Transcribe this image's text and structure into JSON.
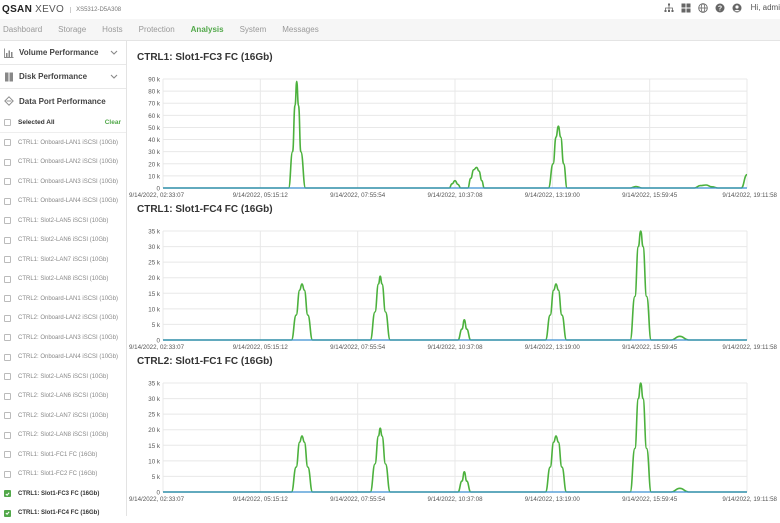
{
  "header": {
    "logo_main": "QSAN",
    "logo_sub": "XEVO",
    "model": "XS5312-D5A308",
    "user": "Hi, admi",
    "icons": [
      "network-icon",
      "grid-icon",
      "globe-icon",
      "help-icon",
      "user-icon"
    ]
  },
  "nav": {
    "tabs": [
      {
        "label": "Dashboard",
        "active": false
      },
      {
        "label": "Storage",
        "active": false
      },
      {
        "label": "Hosts",
        "active": false
      },
      {
        "label": "Protection",
        "active": false
      },
      {
        "label": "Analysis",
        "active": true
      },
      {
        "label": "System",
        "active": false
      },
      {
        "label": "Messages",
        "active": false
      }
    ]
  },
  "sidebar": {
    "sections": [
      {
        "label": "Volume Performance",
        "icon": "bar-chart-icon"
      },
      {
        "label": "Disk Performance",
        "icon": "disk-icon"
      },
      {
        "label": "Data Port Performance",
        "icon": "port-icon"
      }
    ],
    "selected_all": "Selected All",
    "clear": "Clear",
    "ports": [
      {
        "label": "CTRL1: Onboard-LAN1 iSCSI (10Gb)",
        "checked": false
      },
      {
        "label": "CTRL1: Onboard-LAN2 iSCSI (10Gb)",
        "checked": false
      },
      {
        "label": "CTRL1: Onboard-LAN3 iSCSI (10Gb)",
        "checked": false
      },
      {
        "label": "CTRL1: Onboard-LAN4 iSCSI (10Gb)",
        "checked": false
      },
      {
        "label": "CTRL1: Slot2-LAN5 iSCSI (10Gb)",
        "checked": false
      },
      {
        "label": "CTRL1: Slot2-LAN6 iSCSI (10Gb)",
        "checked": false
      },
      {
        "label": "CTRL1: Slot2-LAN7 iSCSI (10Gb)",
        "checked": false
      },
      {
        "label": "CTRL1: Slot2-LAN8 iSCSI (10Gb)",
        "checked": false
      },
      {
        "label": "CTRL2: Onboard-LAN1 iSCSI (10Gb)",
        "checked": false
      },
      {
        "label": "CTRL2: Onboard-LAN2 iSCSI (10Gb)",
        "checked": false
      },
      {
        "label": "CTRL2: Onboard-LAN3 iSCSI (10Gb)",
        "checked": false
      },
      {
        "label": "CTRL2: Onboard-LAN4 iSCSI (10Gb)",
        "checked": false
      },
      {
        "label": "CTRL2: Slot2-LAN5 iSCSI (10Gb)",
        "checked": false
      },
      {
        "label": "CTRL2: Slot2-LAN6 iSCSI (10Gb)",
        "checked": false
      },
      {
        "label": "CTRL2: Slot2-LAN7 iSCSI (10Gb)",
        "checked": false
      },
      {
        "label": "CTRL2: Slot2-LAN8 iSCSI (10Gb)",
        "checked": false
      },
      {
        "label": "CTRL1: Slot1-FC1 FC (16Gb)",
        "checked": false
      },
      {
        "label": "CTRL1: Slot1-FC2 FC (16Gb)",
        "checked": false
      },
      {
        "label": "CTRL1: Slot1-FC3 FC (16Gb)",
        "checked": true
      },
      {
        "label": "CTRL1: Slot1-FC4 FC (16Gb)",
        "checked": true
      }
    ]
  },
  "colors": {
    "accent": "#52a84a",
    "line_green": "#4cb13d",
    "line_blue": "#3a8fd1",
    "grid": "#e8e8e8"
  },
  "chart_data": [
    {
      "type": "line",
      "title": "CTRL1: Slot1-FC3 FC (16Gb)",
      "x_tick_labels": [
        "9/14/2022, 02:33:07",
        "9/14/2022, 05:15:12",
        "9/14/2022, 07:55:54",
        "9/14/2022, 10:37:08",
        "9/14/2022, 13:19:00",
        "9/14/2022, 15:59:45",
        "9/14/2022, 19:11:58"
      ],
      "y_ticks": [
        "0",
        "10 k",
        "20 k",
        "30 k",
        "40 k",
        "50 k",
        "60 k",
        "70 k",
        "80 k",
        "90 k"
      ],
      "ylim": [
        0,
        90000
      ],
      "xlim": [
        0,
        1
      ],
      "grid": true,
      "series": [
        {
          "color": "#4cb13d",
          "points": [
            [
              0,
              0
            ],
            [
              0.215,
              0
            ],
            [
              0.222,
              30000
            ],
            [
              0.226,
              68000
            ],
            [
              0.229,
              88000
            ],
            [
              0.232,
              68000
            ],
            [
              0.236,
              30000
            ],
            [
              0.244,
              0
            ],
            [
              0.49,
              0
            ],
            [
              0.495,
              3500
            ],
            [
              0.5,
              6000
            ],
            [
              0.505,
              3000
            ],
            [
              0.51,
              0
            ],
            [
              0.522,
              0
            ],
            [
              0.527,
              8000
            ],
            [
              0.532,
              15000
            ],
            [
              0.537,
              17000
            ],
            [
              0.541,
              14000
            ],
            [
              0.546,
              6000
            ],
            [
              0.55,
              0
            ],
            [
              0.66,
              0
            ],
            [
              0.668,
              20000
            ],
            [
              0.673,
              42000
            ],
            [
              0.677,
              51000
            ],
            [
              0.681,
              42000
            ],
            [
              0.686,
              20000
            ],
            [
              0.692,
              0
            ],
            [
              0.8,
              0
            ],
            [
              0.81,
              1200
            ],
            [
              0.82,
              0
            ],
            [
              0.91,
              0
            ],
            [
              0.92,
              2000
            ],
            [
              0.93,
              2500
            ],
            [
              0.94,
              1000
            ],
            [
              0.95,
              0
            ],
            [
              0.99,
              0
            ],
            [
              1,
              11000
            ]
          ]
        },
        {
          "color": "#3a8fd1",
          "points": [
            [
              0,
              0
            ],
            [
              1,
              0
            ]
          ]
        }
      ]
    },
    {
      "type": "line",
      "title": "CTRL1: Slot1-FC4 FC (16Gb)",
      "x_tick_labels": [
        "9/14/2022, 02:33:07",
        "9/14/2022, 05:15:12",
        "9/14/2022, 07:55:54",
        "9/14/2022, 10:37:08",
        "9/14/2022, 13:19:00",
        "9/14/2022, 15:59:45",
        "9/14/2022, 19:11:58"
      ],
      "y_ticks": [
        "0",
        "5 k",
        "10 k",
        "15 k",
        "20 k",
        "25 k",
        "30 k",
        "35 k"
      ],
      "ylim": [
        0,
        35000
      ],
      "xlim": [
        0,
        1
      ],
      "grid": true,
      "series": [
        {
          "color": "#4cb13d",
          "points": [
            [
              0,
              0
            ],
            [
              0.22,
              0
            ],
            [
              0.228,
              8000
            ],
            [
              0.234,
              16000
            ],
            [
              0.238,
              18000
            ],
            [
              0.242,
              16000
            ],
            [
              0.248,
              8000
            ],
            [
              0.256,
              0
            ],
            [
              0.355,
              0
            ],
            [
              0.363,
              9000
            ],
            [
              0.369,
              18000
            ],
            [
              0.372,
              20500
            ],
            [
              0.375,
              18000
            ],
            [
              0.381,
              9000
            ],
            [
              0.389,
              0
            ],
            [
              0.505,
              0
            ],
            [
              0.512,
              3500
            ],
            [
              0.516,
              6500
            ],
            [
              0.52,
              3500
            ],
            [
              0.527,
              0
            ],
            [
              0.655,
              0
            ],
            [
              0.663,
              8000
            ],
            [
              0.669,
              16000
            ],
            [
              0.673,
              18000
            ],
            [
              0.677,
              16000
            ],
            [
              0.683,
              8000
            ],
            [
              0.691,
              0
            ],
            [
              0.8,
              0
            ],
            [
              0.808,
              14000
            ],
            [
              0.814,
              30000
            ],
            [
              0.818,
              35000
            ],
            [
              0.822,
              30000
            ],
            [
              0.828,
              14000
            ],
            [
              0.836,
              0
            ],
            [
              0.87,
              0
            ],
            [
              0.885,
              1200
            ],
            [
              0.9,
              0
            ],
            [
              1,
              0
            ]
          ]
        },
        {
          "color": "#3a8fd1",
          "points": [
            [
              0,
              0
            ],
            [
              1,
              0
            ]
          ]
        }
      ]
    },
    {
      "type": "line",
      "title": "CTRL2: Slot1-FC1 FC (16Gb)",
      "x_tick_labels": [
        "9/14/2022, 02:33:07",
        "9/14/2022, 05:15:12",
        "9/14/2022, 07:55:54",
        "9/14/2022, 10:37:08",
        "9/14/2022, 13:19:00",
        "9/14/2022, 15:59:45",
        "9/14/2022, 19:11:58"
      ],
      "y_ticks": [
        "0",
        "5 k",
        "10 k",
        "15 k",
        "20 k",
        "25 k",
        "30 k",
        "35 k"
      ],
      "ylim": [
        0,
        35000
      ],
      "xlim": [
        0,
        1
      ],
      "grid": true,
      "series": [
        {
          "color": "#4cb13d",
          "points": [
            [
              0,
              0
            ],
            [
              0.22,
              0
            ],
            [
              0.228,
              8000
            ],
            [
              0.234,
              16000
            ],
            [
              0.238,
              18000
            ],
            [
              0.242,
              16000
            ],
            [
              0.248,
              8000
            ],
            [
              0.256,
              0
            ],
            [
              0.355,
              0
            ],
            [
              0.363,
              9000
            ],
            [
              0.369,
              18000
            ],
            [
              0.372,
              20500
            ],
            [
              0.375,
              18000
            ],
            [
              0.381,
              9000
            ],
            [
              0.389,
              0
            ],
            [
              0.505,
              0
            ],
            [
              0.512,
              3500
            ],
            [
              0.516,
              6500
            ],
            [
              0.52,
              3500
            ],
            [
              0.527,
              0
            ],
            [
              0.655,
              0
            ],
            [
              0.663,
              8000
            ],
            [
              0.669,
              16000
            ],
            [
              0.673,
              18000
            ],
            [
              0.677,
              16000
            ],
            [
              0.683,
              8000
            ],
            [
              0.691,
              0
            ],
            [
              0.8,
              0
            ],
            [
              0.808,
              14000
            ],
            [
              0.814,
              30000
            ],
            [
              0.818,
              35000
            ],
            [
              0.822,
              30000
            ],
            [
              0.828,
              14000
            ],
            [
              0.836,
              0
            ],
            [
              0.87,
              0
            ],
            [
              0.885,
              1200
            ],
            [
              0.9,
              0
            ],
            [
              1,
              0
            ]
          ]
        },
        {
          "color": "#3a8fd1",
          "points": [
            [
              0,
              0
            ],
            [
              1,
              0
            ]
          ]
        }
      ]
    }
  ]
}
